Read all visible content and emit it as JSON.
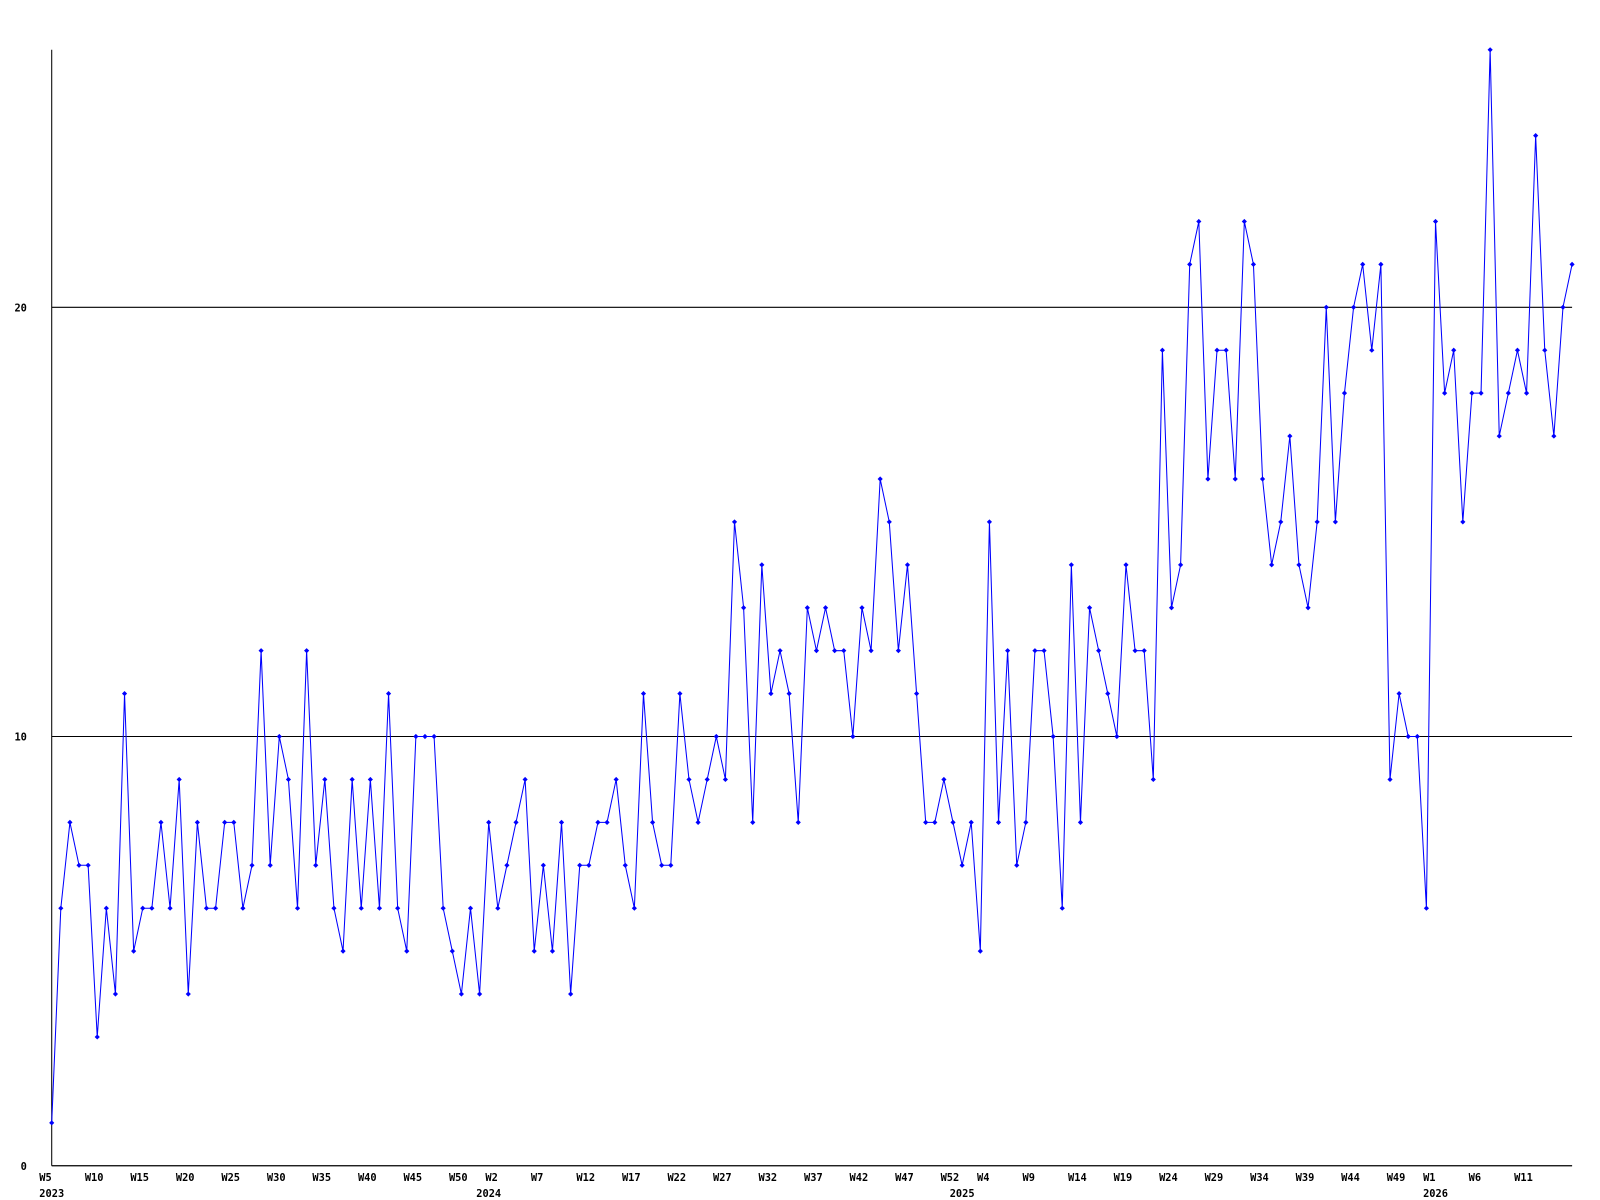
{
  "chart_data": {
    "type": "line",
    "color": "#0000ff",
    "grid": true,
    "ylim": [
      0,
      26
    ],
    "yticks": [
      0,
      10,
      20
    ],
    "categories": [
      "W5",
      null,
      null,
      null,
      null,
      "W10",
      null,
      null,
      null,
      null,
      "W15",
      null,
      null,
      null,
      null,
      "W20",
      null,
      null,
      null,
      null,
      "W25",
      null,
      null,
      null,
      null,
      "W30",
      null,
      null,
      null,
      null,
      "W35",
      null,
      null,
      null,
      null,
      "W40",
      null,
      null,
      null,
      null,
      "W45",
      null,
      null,
      null,
      null,
      "W50",
      null,
      null,
      null,
      "W2",
      null,
      null,
      null,
      null,
      "W7",
      null,
      null,
      null,
      null,
      "W12",
      null,
      null,
      null,
      null,
      "W17",
      null,
      null,
      null,
      null,
      "W22",
      null,
      null,
      null,
      null,
      "W27",
      null,
      null,
      null,
      null,
      "W32",
      null,
      null,
      null,
      null,
      "W37",
      null,
      null,
      null,
      null,
      "W42",
      null,
      null,
      null,
      null,
      "W47",
      null,
      null,
      null,
      null,
      "W52",
      null,
      null,
      null,
      "W4",
      null,
      null,
      null,
      null,
      "W9",
      null,
      null,
      null,
      null,
      "W14",
      null,
      null,
      null,
      null,
      "W19",
      null,
      null,
      null,
      null,
      "W24",
      null,
      null,
      null,
      null,
      "W29",
      null,
      null,
      null,
      null,
      "W34",
      null,
      null,
      null,
      null,
      "W39",
      null,
      null,
      null,
      null,
      "W44",
      null,
      null,
      null,
      null,
      "W49",
      null,
      null,
      null,
      "W1",
      null,
      null,
      null,
      null,
      "W6",
      null,
      null,
      null,
      null,
      "W11",
      null,
      null,
      null,
      null,
      null
    ],
    "year_labels": [
      "2023",
      null,
      null,
      null,
      null,
      null,
      null,
      null,
      null,
      null,
      null,
      null,
      null,
      null,
      null,
      null,
      null,
      null,
      null,
      null,
      null,
      null,
      null,
      null,
      null,
      null,
      null,
      null,
      null,
      null,
      null,
      null,
      null,
      null,
      null,
      null,
      null,
      null,
      null,
      null,
      null,
      null,
      null,
      null,
      null,
      null,
      null,
      null,
      "2024",
      null,
      null,
      null,
      null,
      null,
      null,
      null,
      null,
      null,
      null,
      null,
      null,
      null,
      null,
      null,
      null,
      null,
      null,
      null,
      null,
      null,
      null,
      null,
      null,
      null,
      null,
      null,
      null,
      null,
      null,
      null,
      null,
      null,
      null,
      null,
      null,
      null,
      null,
      null,
      null,
      null,
      null,
      null,
      null,
      null,
      null,
      null,
      null,
      null,
      null,
      null,
      "2025",
      null,
      null,
      null,
      null,
      null,
      null,
      null,
      null,
      null,
      null,
      null,
      null,
      null,
      null,
      null,
      null,
      null,
      null,
      null,
      null,
      null,
      null,
      null,
      null,
      null,
      null,
      null,
      null,
      null,
      null,
      null,
      null,
      null,
      null,
      null,
      null,
      null,
      null,
      null,
      null,
      null,
      null,
      null,
      null,
      null,
      null,
      null,
      null,
      null,
      null,
      null,
      "2026",
      null,
      null,
      null,
      null,
      null,
      null,
      null,
      null,
      null,
      null,
      null,
      null,
      null,
      null,
      null
    ],
    "values": [
      1,
      6,
      8,
      7,
      7,
      3,
      6,
      4,
      11,
      5,
      6,
      6,
      8,
      6,
      9,
      4,
      8,
      6,
      6,
      8,
      8,
      6,
      7,
      12,
      7,
      10,
      9,
      6,
      12,
      7,
      9,
      6,
      5,
      9,
      6,
      9,
      6,
      11,
      6,
      5,
      10,
      10,
      10,
      6,
      5,
      4,
      6,
      4,
      8,
      6,
      7,
      8,
      9,
      5,
      7,
      5,
      8,
      4,
      7,
      7,
      8,
      8,
      9,
      7,
      6,
      11,
      8,
      7,
      7,
      11,
      9,
      8,
      9,
      10,
      9,
      15,
      13,
      8,
      14,
      11,
      12,
      11,
      8,
      13,
      12,
      13,
      12,
      12,
      10,
      13,
      12,
      16,
      15,
      12,
      14,
      11,
      8,
      8,
      9,
      8,
      7,
      8,
      5,
      15,
      8,
      12,
      7,
      8,
      12,
      12,
      10,
      6,
      14,
      8,
      13,
      12,
      11,
      10,
      14,
      12,
      12,
      9,
      19,
      13,
      14,
      21,
      22,
      16,
      19,
      19,
      16,
      22,
      21,
      16,
      14,
      15,
      17,
      14,
      13,
      15,
      20,
      15,
      18,
      20,
      21,
      19,
      21,
      9,
      11,
      10,
      10,
      6,
      22,
      18,
      19,
      15,
      18,
      18,
      26,
      17,
      18,
      19,
      18,
      24,
      19,
      17,
      20,
      21
    ]
  }
}
